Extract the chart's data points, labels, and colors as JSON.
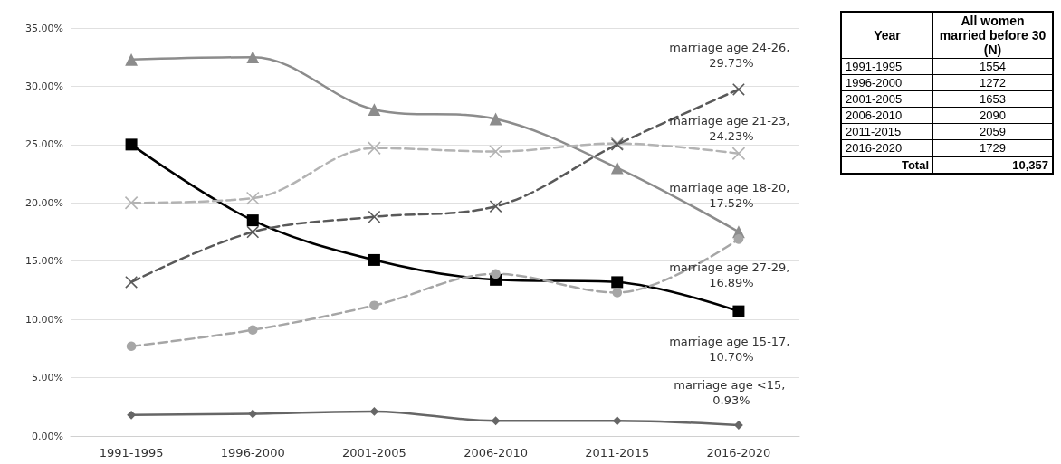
{
  "chart_data": [
    {
      "type": "line",
      "categories": [
        "1991-1995",
        "1996-2000",
        "2001-2005",
        "2006-2010",
        "2011-2015",
        "2016-2020"
      ],
      "series": [
        {
          "color": "#8c8c8c",
          "marker": "triangle",
          "line_style": "solid",
          "values": [
            32.3,
            32.5,
            28.0,
            27.2,
            23.0,
            17.52
          ]
        },
        {
          "color": "#000000",
          "marker": "square",
          "line_style": "solid",
          "values": [
            25.0,
            18.5,
            15.1,
            13.4,
            13.2,
            10.7
          ]
        },
        {
          "color": "#b3b3b3",
          "marker": "cross",
          "line_style": "dashed",
          "values": [
            20.0,
            20.4,
            24.7,
            24.4,
            25.1,
            24.23
          ]
        },
        {
          "color": "#595959",
          "marker": "cross",
          "line_style": "dashed",
          "values": [
            13.2,
            17.5,
            18.8,
            19.7,
            25.0,
            29.73
          ]
        },
        {
          "color": "#a6a6a6",
          "marker": "circle",
          "line_style": "dashed",
          "values": [
            7.7,
            9.1,
            11.2,
            13.9,
            12.3,
            16.89
          ]
        },
        {
          "color": "#666666",
          "marker": "diamond",
          "line_style": "solid",
          "values": [
            1.8,
            1.9,
            2.1,
            1.3,
            1.3,
            0.93
          ]
        }
      ],
      "ylim": [
        0,
        35
      ],
      "yticks": [
        {
          "value": 0,
          "label": "0.00%"
        },
        {
          "value": 5,
          "label": "5.00%"
        },
        {
          "value": 10,
          "label": "10.00%"
        },
        {
          "value": 15,
          "label": "15.00%"
        },
        {
          "value": 20,
          "label": "20.00%"
        },
        {
          "value": 25,
          "label": "25.00%"
        },
        {
          "value": 30,
          "label": "30.00%"
        },
        {
          "value": 35,
          "label": "35.00%"
        }
      ],
      "grid": "y",
      "annotations": [
        {
          "text": "marriage age 24-26, 29.73%",
          "x": "2016-2020",
          "y": 29.73
        },
        {
          "text": "marriage age 21-23, 24.23%",
          "x": "2016-2020",
          "y": 24.23
        },
        {
          "text": "marriage age 18-20, 17.52%",
          "x": "2016-2020",
          "y": 17.52
        },
        {
          "text": "marriage age 27-29, 16.89%",
          "x": "2016-2020",
          "y": 16.89
        },
        {
          "text": "marriage age 15-17, 10.70%",
          "x": "2016-2020",
          "y": 10.7
        },
        {
          "text": "marriage age <15, 0.93%",
          "x": "2016-2020",
          "y": 0.93
        }
      ]
    },
    {
      "type": "other",
      "xlabel": "Year",
      "ylabel": "All women married before 30 (N)",
      "categories": [
        "1991-1995",
        "1996-2000",
        "2001-2005",
        "2006-2010",
        "2011-2015",
        "2016-2020"
      ],
      "annotations": [
        "Total"
      ],
      "values": [
        1554,
        1272,
        1653,
        2090,
        2059,
        1729
      ],
      "data_labels": true,
      "totals": [
        "10,357"
      ]
    }
  ]
}
